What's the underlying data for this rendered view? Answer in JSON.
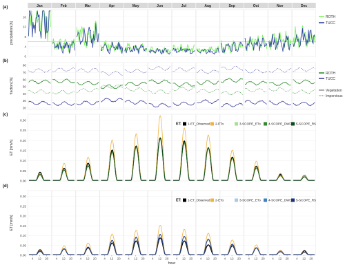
{
  "months": [
    "Jan",
    "Feb",
    "Mar",
    "Apr",
    "May",
    "Jun",
    "Jul",
    "Aug",
    "Sep",
    "Oct",
    "Nov",
    "Dec"
  ],
  "hour_ticks": [
    "4",
    "12",
    "20"
  ],
  "xlabel": "hour",
  "colors": {
    "strip": "#d9d9d9",
    "roth": "#7cf45a",
    "tucc": "#2b3fa0",
    "roth_green": "#2e8b2e",
    "tucc_violet": "#3f3fa0",
    "et_observed": "#000000",
    "eto": "#f0b341",
    "scope_eto_c": "#a9dd9a",
    "scope_dwd_c": "#2f8a2f",
    "scope_rs_c": "#0b4a1a",
    "scope_eto_d": "#a6cbe8",
    "scope_dwd_d": "#3f7fc4",
    "scope_rs_d": "#1d2f7a"
  },
  "chart_data": [
    {
      "panel": "(a)",
      "type": "line",
      "ylabel": "precipitation [h]",
      "y_ticks": [
        "0",
        "4",
        "8",
        "12",
        "16"
      ],
      "ylim": [
        0,
        19
      ],
      "reference_line": 6,
      "x_axis": "day of month",
      "legend_position": "right",
      "series": [
        {
          "name": "ROTH",
          "color_key": "roth",
          "monthly_mean": [
            15.5,
            4.5,
            8.5,
            4.0,
            3.5,
            2.5,
            3.0,
            2.5,
            4.0,
            5.5,
            6.5,
            8.0
          ]
        },
        {
          "name": "TUCC",
          "color_key": "tucc",
          "monthly_mean": [
            15.0,
            4.0,
            8.0,
            3.5,
            3.0,
            2.0,
            2.5,
            2.0,
            3.5,
            5.0,
            6.0,
            7.5
          ]
        }
      ]
    },
    {
      "panel": "(b)",
      "type": "line",
      "ylabel": "fraction [%]",
      "y_ticks": [
        "20",
        "30",
        "40",
        "50",
        "60",
        "70",
        "80"
      ],
      "ylim": [
        18,
        84
      ],
      "x_axis": "day of month",
      "legend_position": "right",
      "series": [
        {
          "name": "ROTH",
          "color_key": "roth_green",
          "kind": "Vegetation",
          "monthly_level": [
            57,
            58,
            55,
            50,
            54,
            57,
            53,
            56,
            59,
            55,
            54,
            57
          ]
        },
        {
          "name": "TUCC",
          "color_key": "tucc_violet",
          "kind": "Vegetation",
          "monthly_level": [
            27,
            26,
            27,
            31,
            28,
            24,
            26,
            29,
            24,
            28,
            27,
            26
          ]
        },
        {
          "name": "ROTH",
          "color_key": "roth_green",
          "kind": "Impervious",
          "monthly_level": [
            43,
            42,
            45,
            50,
            46,
            43,
            47,
            44,
            41,
            45,
            46,
            43
          ]
        },
        {
          "name": "TUCC",
          "color_key": "tucc_violet",
          "kind": "Impervious",
          "monthly_level": [
            73,
            74,
            73,
            69,
            72,
            76,
            74,
            71,
            76,
            72,
            73,
            74
          ]
        }
      ],
      "line_types": [
        {
          "name": "Vegetation",
          "dash": false
        },
        {
          "name": "Impervious",
          "dash": true
        }
      ]
    },
    {
      "panel": "(c)",
      "type": "line",
      "ylabel": "ET [mm/h]",
      "y_ticks": [
        "0.00",
        "0.05",
        "0.10",
        "0.15",
        "0.20",
        "0.25",
        "0.30"
      ],
      "ylim": [
        0,
        0.33
      ],
      "legend_title": "ET:",
      "legend_position": "top-right",
      "series": [
        {
          "name": "1-ET_Observed",
          "color_key": "et_observed",
          "monthly_peak": [
            0.04,
            0.06,
            0.085,
            0.15,
            0.17,
            0.21,
            0.195,
            0.16,
            0.115,
            0.07,
            0.03,
            0.025
          ]
        },
        {
          "name": "2-ETo",
          "color_key": "eto",
          "monthly_peak": [
            0.035,
            0.085,
            0.115,
            0.2,
            0.23,
            0.32,
            0.26,
            0.225,
            0.15,
            0.095,
            0.035,
            0.025
          ]
        },
        {
          "name": "3-SCOPE_ETo",
          "color_key": "scope_eto_c",
          "monthly_peak": [
            0.025,
            0.055,
            0.075,
            0.135,
            0.16,
            0.2,
            0.18,
            0.155,
            0.105,
            0.065,
            0.025,
            0.018
          ]
        },
        {
          "name": "4-SCOPE_DWD",
          "color_key": "scope_dwd_c",
          "monthly_peak": [
            0.028,
            0.05,
            0.07,
            0.14,
            0.165,
            0.205,
            0.185,
            0.16,
            0.11,
            0.06,
            0.022,
            0.016
          ]
        },
        {
          "name": "5-SCOPE_RS",
          "color_key": "scope_rs_c",
          "monthly_peak": [
            0.03,
            0.052,
            0.072,
            0.145,
            0.168,
            0.208,
            0.19,
            0.163,
            0.112,
            0.062,
            0.024,
            0.018
          ]
        }
      ]
    },
    {
      "panel": "(d)",
      "type": "line",
      "ylabel": "ET [mm/h]",
      "y_ticks": [
        "0.00",
        "0.05",
        "0.10",
        "0.15",
        "0.20",
        "0.25",
        "0.30"
      ],
      "ylim": [
        0,
        0.33
      ],
      "legend_title": "ET:",
      "legend_position": "top-right",
      "series": [
        {
          "name": "1-ET_Observed",
          "color_key": "et_observed",
          "monthly_peak": [
            0.025,
            0.03,
            0.035,
            0.06,
            0.07,
            0.085,
            0.07,
            0.05,
            0.045,
            0.035,
            0.02,
            0.02
          ]
        },
        {
          "name": "2-ETo",
          "color_key": "eto",
          "monthly_peak": [
            0.02,
            0.045,
            0.06,
            0.105,
            0.125,
            0.15,
            0.13,
            0.11,
            0.075,
            0.05,
            0.02,
            0.015
          ]
        },
        {
          "name": "3-SCOPE_ETo",
          "color_key": "scope_eto_d",
          "monthly_peak": [
            0.015,
            0.03,
            0.04,
            0.07,
            0.085,
            0.1,
            0.09,
            0.075,
            0.05,
            0.035,
            0.015,
            0.012
          ]
        },
        {
          "name": "4-SCOPE_DWD",
          "color_key": "scope_dwd_d",
          "monthly_peak": [
            0.016,
            0.028,
            0.038,
            0.072,
            0.088,
            0.102,
            0.092,
            0.078,
            0.052,
            0.033,
            0.014,
            0.011
          ]
        },
        {
          "name": "5-SCOPE_RS",
          "color_key": "scope_rs_d",
          "monthly_peak": [
            0.017,
            0.029,
            0.039,
            0.074,
            0.09,
            0.104,
            0.094,
            0.08,
            0.054,
            0.034,
            0.015,
            0.012
          ]
        }
      ]
    }
  ]
}
